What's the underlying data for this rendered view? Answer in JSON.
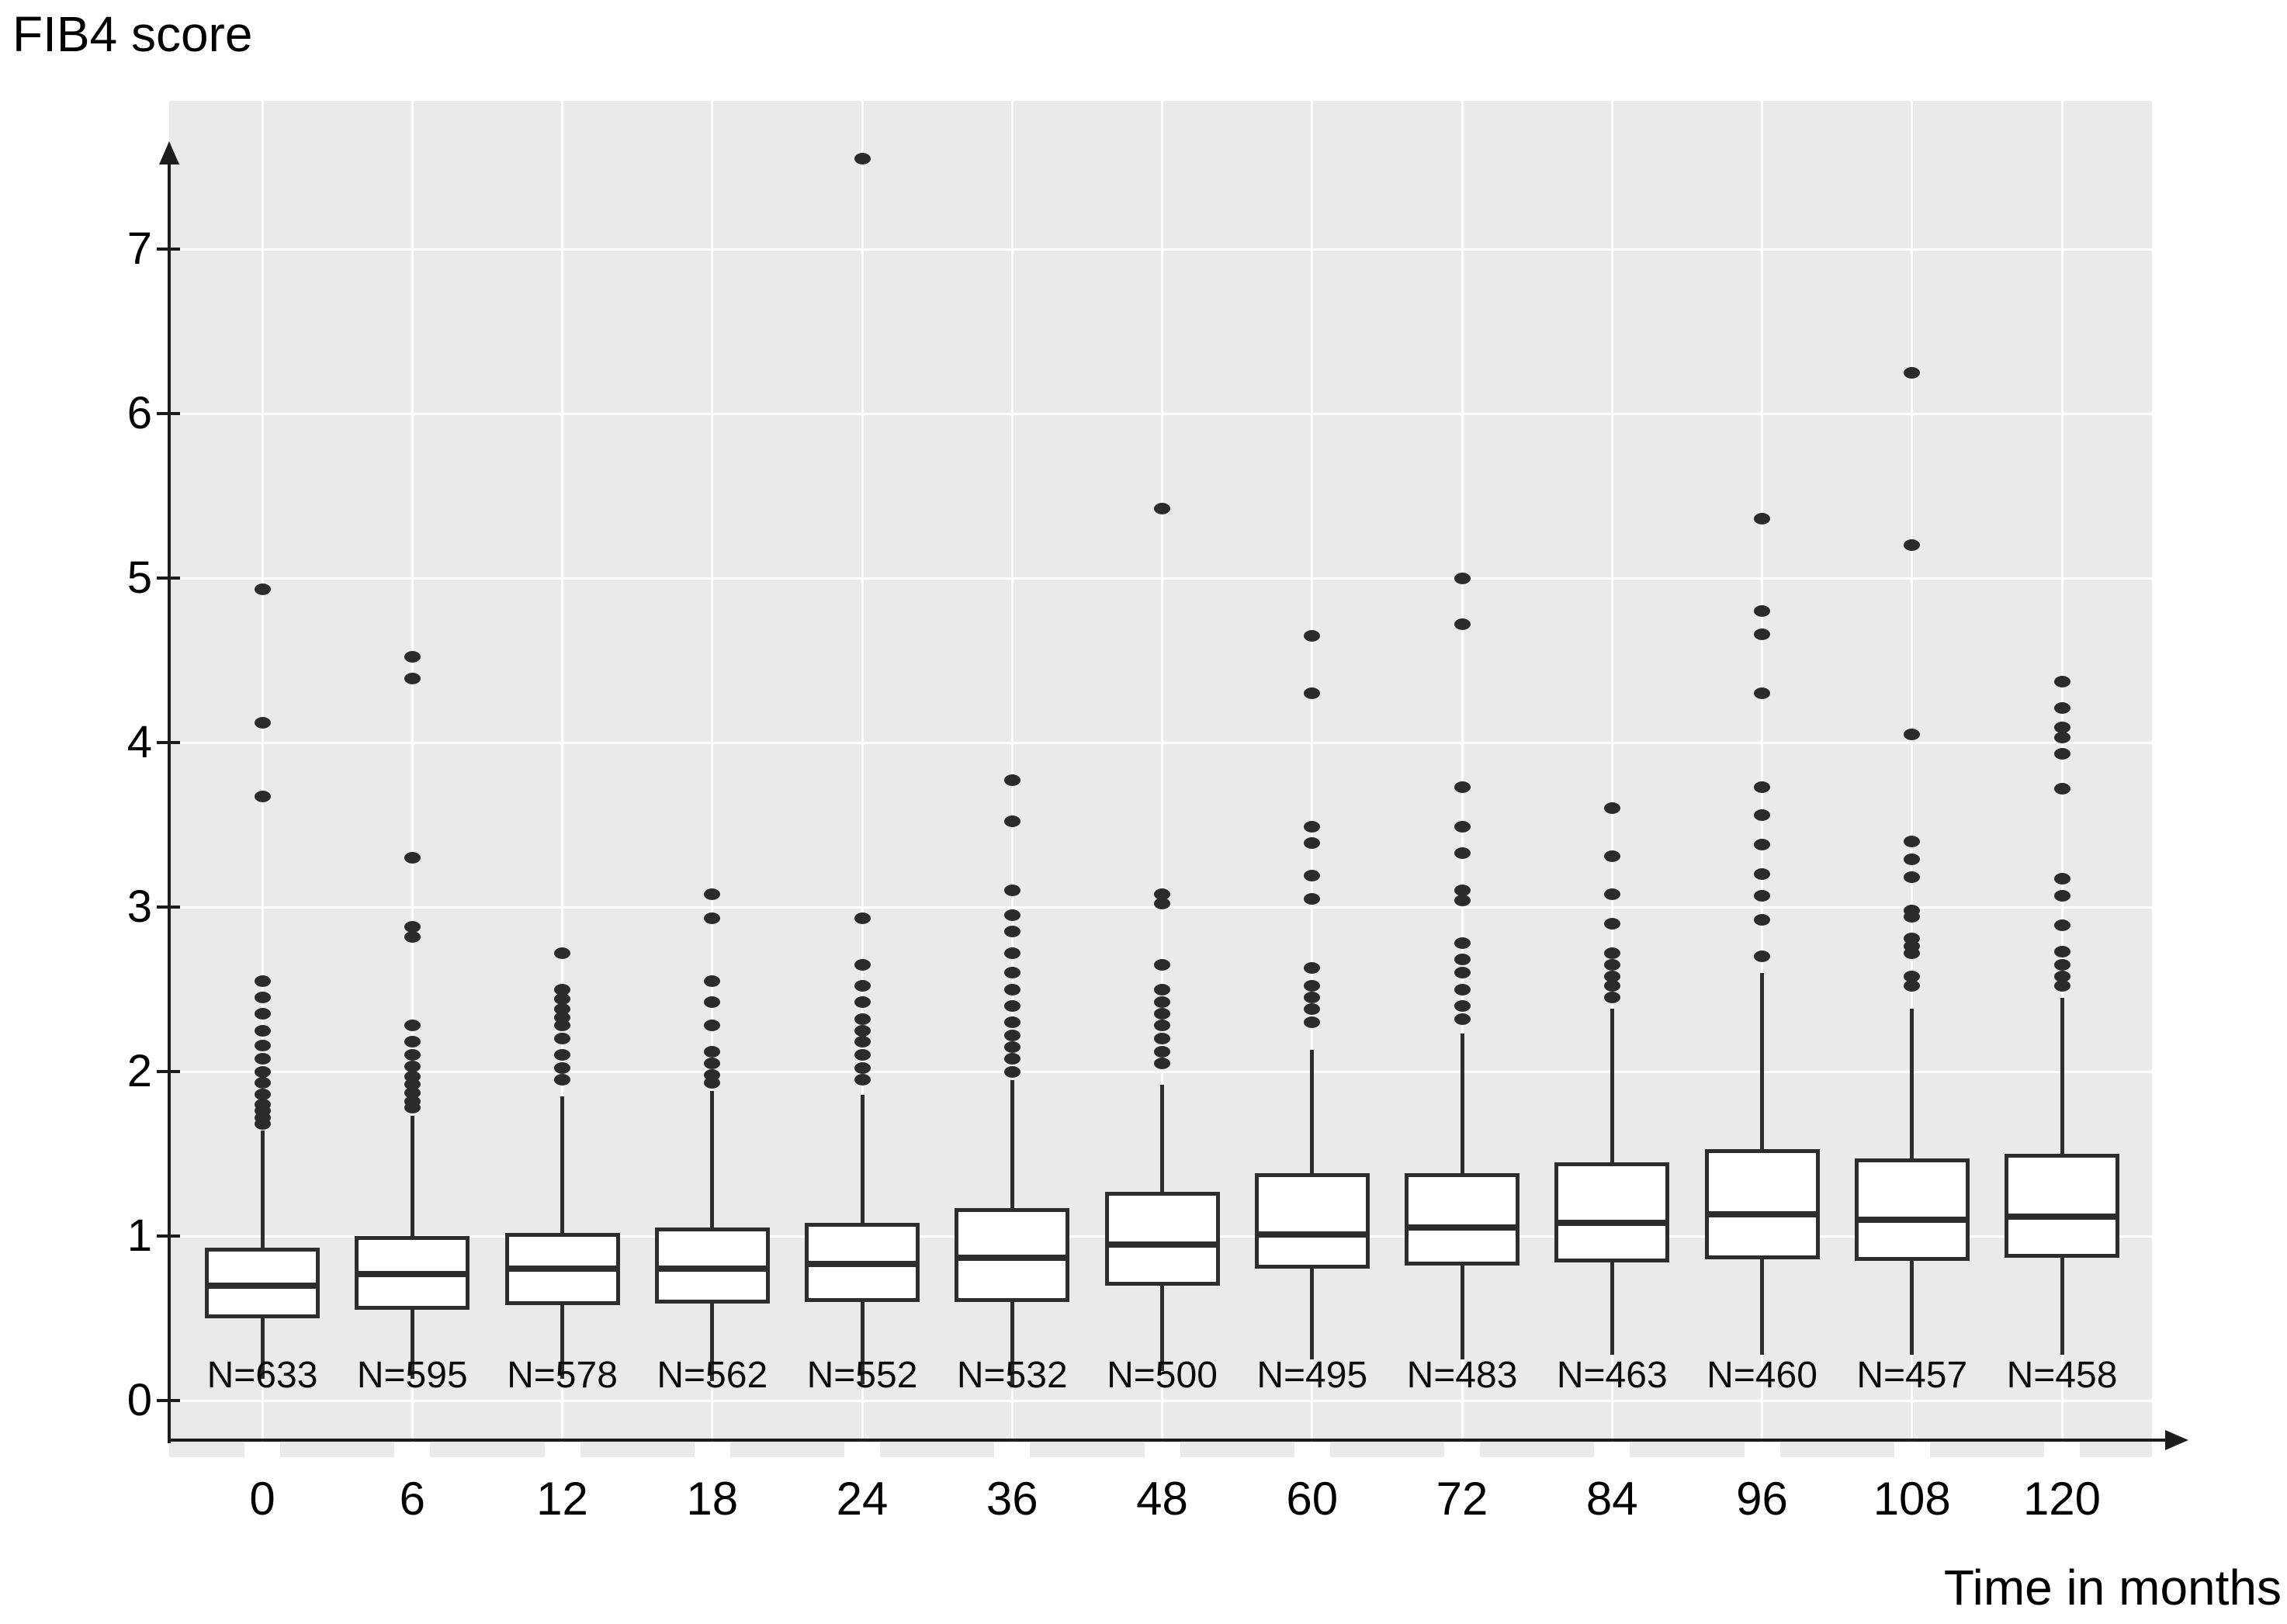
{
  "figure": {
    "y_axis_title": "FIB4 score",
    "x_axis_title": "Time in months"
  },
  "colors": {
    "plot_background": "#eaeaea",
    "gridline": "#ffffff",
    "box_stroke": "#2d2d2d",
    "box_fill": "#ffffff",
    "dot": "#2b2b2b",
    "axis": "#1c1c1c",
    "text": "#000000"
  },
  "chart_data": {
    "type": "boxplot",
    "title": "",
    "ylabel": "FIB4 score",
    "xlabel": "Time in months",
    "ylim": [
      0,
      7.9
    ],
    "y_ticks": [
      "0",
      "1",
      "2",
      "3",
      "4",
      "5",
      "6",
      "7"
    ],
    "grid": "white on light-gray panel, horizontal at integers and vertical at each category",
    "legend": "none",
    "categories": [
      "0",
      "6",
      "12",
      "18",
      "24",
      "36",
      "48",
      "60",
      "72",
      "84",
      "96",
      "108",
      "120"
    ],
    "n_labels": [
      "N=633",
      "N=595",
      "N=578",
      "N=562",
      "N=552",
      "N=532",
      "N=500",
      "N=495",
      "N=483",
      "N=463",
      "N=460",
      "N=457",
      "N=458"
    ],
    "boxes": [
      {
        "month": "0",
        "n": 633,
        "low": 0.13,
        "q1": 0.5,
        "median": 0.7,
        "q3": 0.93,
        "high": 1.64,
        "outliers": [
          1.68,
          1.72,
          1.76,
          1.8,
          1.86,
          1.93,
          2.0,
          2.08,
          2.16,
          2.25,
          2.35,
          2.45,
          2.55,
          3.67,
          4.12,
          4.93
        ]
      },
      {
        "month": "6",
        "n": 595,
        "low": 0.13,
        "q1": 0.55,
        "median": 0.77,
        "q3": 1.0,
        "high": 1.73,
        "outliers": [
          1.78,
          1.82,
          1.87,
          1.92,
          1.97,
          2.03,
          2.1,
          2.18,
          2.28,
          2.82,
          2.88,
          3.3,
          4.39,
          4.52
        ]
      },
      {
        "month": "12",
        "n": 578,
        "low": 0.13,
        "q1": 0.58,
        "median": 0.8,
        "q3": 1.02,
        "high": 1.85,
        "outliers": [
          1.95,
          2.02,
          2.1,
          2.2,
          2.28,
          2.33,
          2.38,
          2.44,
          2.5,
          2.72
        ]
      },
      {
        "month": "18",
        "n": 562,
        "low": 0.12,
        "q1": 0.59,
        "median": 0.8,
        "q3": 1.05,
        "high": 1.88,
        "outliers": [
          1.93,
          1.98,
          2.05,
          2.12,
          2.28,
          2.42,
          2.55,
          2.93,
          3.08
        ]
      },
      {
        "month": "24",
        "n": 552,
        "low": 0.1,
        "q1": 0.6,
        "median": 0.83,
        "q3": 1.08,
        "high": 1.86,
        "outliers": [
          1.95,
          2.02,
          2.1,
          2.18,
          2.25,
          2.32,
          2.42,
          2.52,
          2.65,
          2.93,
          7.55
        ]
      },
      {
        "month": "36",
        "n": 532,
        "low": 0.08,
        "q1": 0.6,
        "median": 0.87,
        "q3": 1.17,
        "high": 1.95,
        "outliers": [
          2.0,
          2.08,
          2.15,
          2.22,
          2.3,
          2.4,
          2.5,
          2.6,
          2.72,
          2.85,
          2.95,
          3.1,
          3.52,
          3.77
        ]
      },
      {
        "month": "48",
        "n": 500,
        "low": 0.18,
        "q1": 0.7,
        "median": 0.95,
        "q3": 1.27,
        "high": 1.92,
        "outliers": [
          2.05,
          2.12,
          2.2,
          2.28,
          2.35,
          2.42,
          2.5,
          2.65,
          3.02,
          3.08,
          5.42
        ]
      },
      {
        "month": "60",
        "n": 495,
        "low": 0.25,
        "q1": 0.8,
        "median": 1.01,
        "q3": 1.38,
        "high": 2.13,
        "outliers": [
          2.3,
          2.38,
          2.45,
          2.52,
          2.63,
          3.05,
          3.19,
          3.39,
          3.49,
          4.3,
          4.65
        ]
      },
      {
        "month": "72",
        "n": 483,
        "low": 0.25,
        "q1": 0.82,
        "median": 1.05,
        "q3": 1.38,
        "high": 2.23,
        "outliers": [
          2.32,
          2.4,
          2.5,
          2.6,
          2.68,
          2.78,
          3.04,
          3.1,
          3.33,
          3.49,
          3.73,
          4.72,
          5.0
        ]
      },
      {
        "month": "84",
        "n": 463,
        "low": 0.28,
        "q1": 0.84,
        "median": 1.08,
        "q3": 1.45,
        "high": 2.38,
        "outliers": [
          2.45,
          2.52,
          2.58,
          2.65,
          2.72,
          2.9,
          3.08,
          3.31,
          3.6
        ]
      },
      {
        "month": "96",
        "n": 460,
        "low": 0.28,
        "q1": 0.86,
        "median": 1.13,
        "q3": 1.53,
        "high": 2.6,
        "outliers": [
          2.7,
          2.92,
          3.07,
          3.2,
          3.38,
          3.56,
          3.73,
          4.3,
          4.66,
          4.8,
          5.36
        ]
      },
      {
        "month": "108",
        "n": 457,
        "low": 0.28,
        "q1": 0.85,
        "median": 1.1,
        "q3": 1.47,
        "high": 2.38,
        "outliers": [
          2.52,
          2.58,
          2.72,
          2.76,
          2.81,
          2.94,
          2.98,
          3.18,
          3.29,
          3.4,
          4.05,
          5.2,
          6.25
        ]
      },
      {
        "month": "120",
        "n": 458,
        "low": 0.28,
        "q1": 0.87,
        "median": 1.12,
        "q3": 1.5,
        "high": 2.45,
        "outliers": [
          2.52,
          2.58,
          2.65,
          2.73,
          2.89,
          3.07,
          3.17,
          3.72,
          3.93,
          4.03,
          4.09,
          4.21,
          4.37
        ]
      }
    ]
  }
}
